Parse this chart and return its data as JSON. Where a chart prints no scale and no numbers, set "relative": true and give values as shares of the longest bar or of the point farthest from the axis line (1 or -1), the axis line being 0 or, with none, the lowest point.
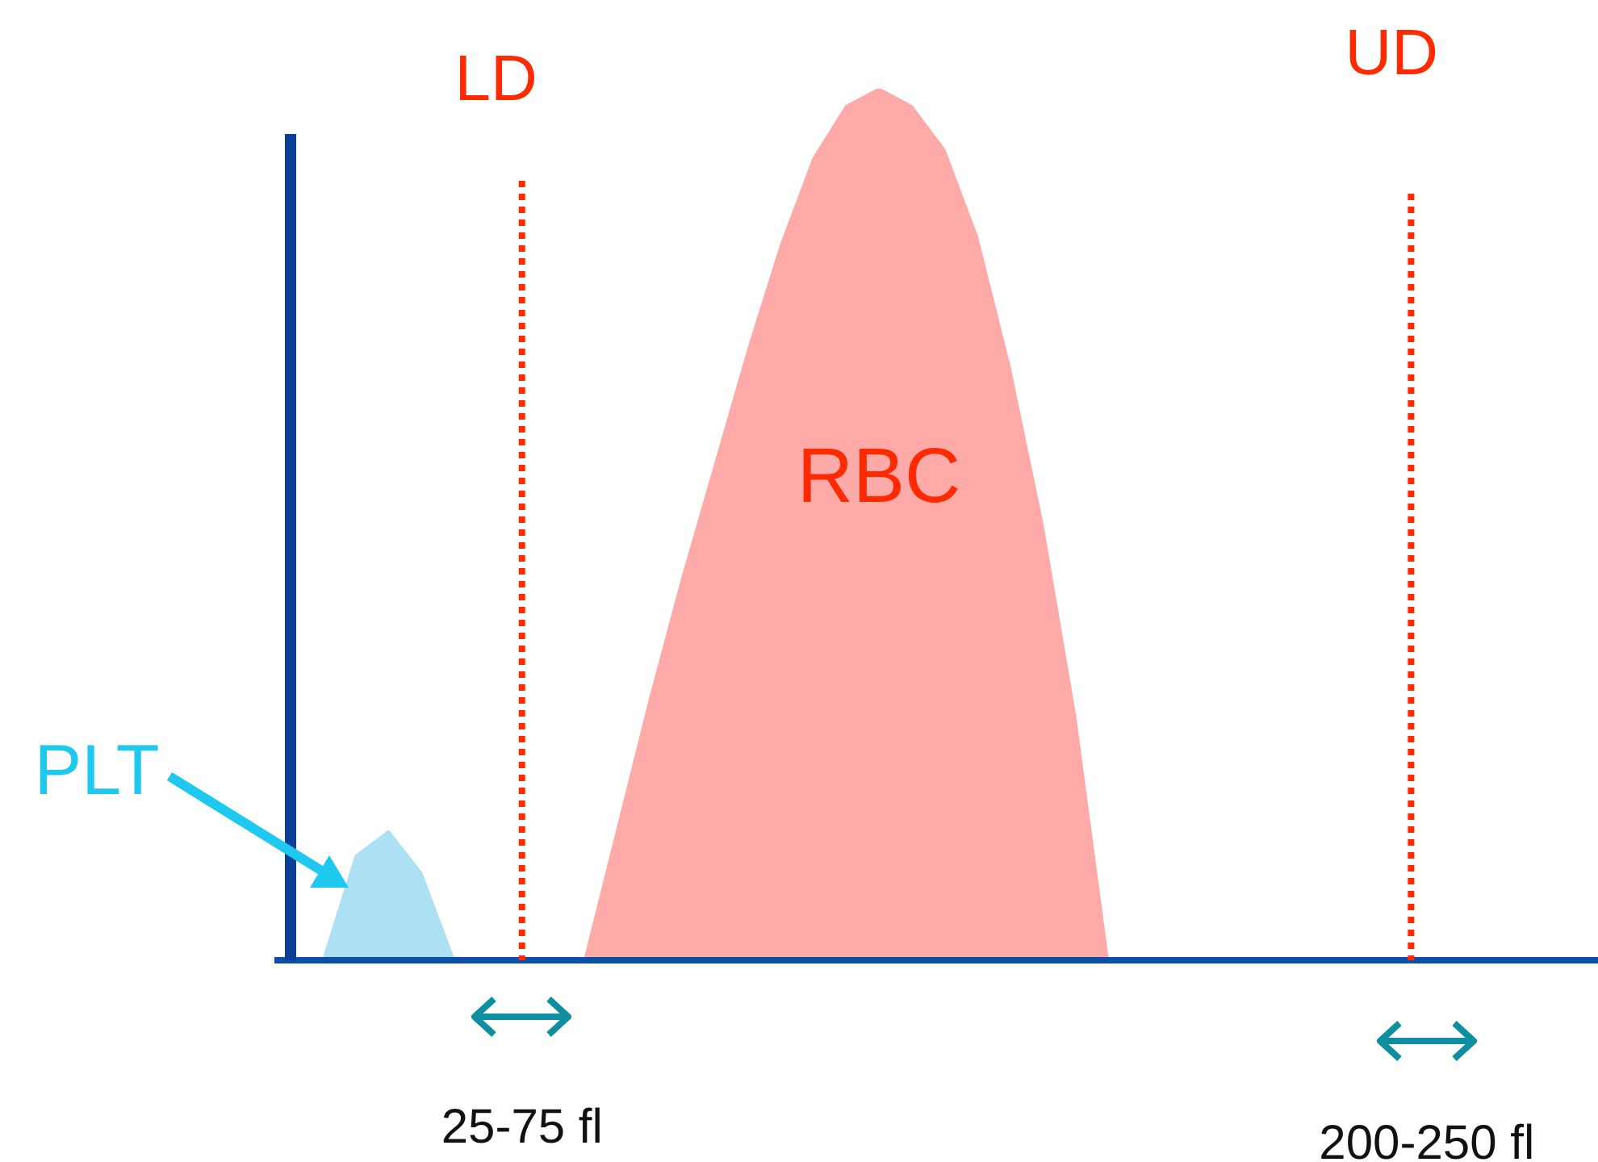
{
  "chart_data": {
    "type": "area",
    "relative": true,
    "categories": [
      null,
      null,
      null,
      null,
      null,
      null,
      null,
      null,
      null,
      null,
      null,
      null,
      null,
      null,
      null,
      null,
      null,
      null,
      null,
      null,
      null,
      null,
      null,
      null,
      null,
      null,
      null,
      null,
      null,
      null,
      null,
      null,
      null,
      null,
      null,
      null,
      null,
      null,
      null,
      null,
      null
    ],
    "series": [
      {
        "name": "PLT",
        "color": "#aee0f4",
        "values": [
          null,
          0,
          0.12,
          0.148,
          0.1,
          0,
          null,
          null,
          null,
          null,
          null,
          null,
          null,
          null,
          null,
          null,
          null,
          null,
          null,
          null,
          null,
          null,
          null,
          null,
          null,
          null,
          null,
          null,
          null,
          null,
          null,
          null,
          null,
          null,
          null,
          null,
          null,
          null,
          null,
          null,
          null
        ]
      },
      {
        "name": "RBC",
        "color": "#fdaaa8",
        "values": [
          null,
          null,
          null,
          null,
          null,
          null,
          null,
          null,
          null,
          0,
          0.15,
          0.3,
          0.44,
          0.57,
          0.7,
          0.82,
          0.92,
          0.98,
          1,
          0.98,
          0.93,
          0.83,
          0.68,
          0.5,
          0.28,
          0,
          null,
          null,
          null,
          null,
          null,
          null,
          null,
          null,
          null,
          null,
          null,
          null,
          null,
          null,
          null
        ]
      }
    ],
    "ref_lines": [
      {
        "axis": "x",
        "label": "LD",
        "color": "#ff2a00",
        "line_style": "dotted"
      },
      {
        "axis": "x",
        "label": "UD",
        "color": "#ff2a00",
        "line_style": "dotted"
      }
    ],
    "annotations": [
      "25-75 fl",
      "200-250 fl"
    ]
  }
}
